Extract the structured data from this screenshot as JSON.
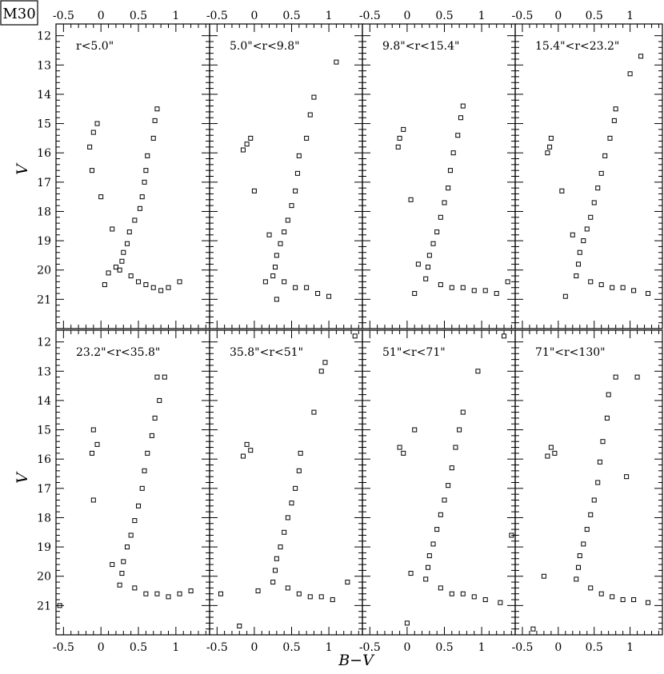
{
  "cluster_label": "M30",
  "chart_data": [
    {
      "type": "scatter",
      "panel_label": "r<5.0\"",
      "xlabel": "B−V",
      "ylabel": "V",
      "xlim": [
        -0.6,
        1.45
      ],
      "ylim": [
        22,
        11.6
      ],
      "x_ticks": [
        "-0.5",
        "0",
        "0.5",
        "1"
      ],
      "y_ticks": [
        "12",
        "13",
        "14",
        "15",
        "16",
        "17",
        "18",
        "19",
        "20",
        "21"
      ],
      "x": [
        0.75,
        0.72,
        0.7,
        0.62,
        0.6,
        0.58,
        0.55,
        0.52,
        0.45,
        0.38,
        0.35,
        0.3,
        0.28,
        0.25,
        0.4,
        0.5,
        0.6,
        0.7,
        0.8,
        0.9,
        0.2,
        0.1,
        0.05,
        -0.05,
        -0.1,
        -0.15,
        -0.12,
        0.0,
        0.15,
        1.05
      ],
      "y": [
        14.5,
        14.9,
        15.5,
        16.1,
        16.6,
        17.0,
        17.5,
        17.9,
        18.3,
        18.7,
        19.1,
        19.4,
        19.7,
        20.0,
        20.2,
        20.4,
        20.5,
        20.6,
        20.7,
        20.6,
        19.9,
        20.1,
        20.5,
        15.0,
        15.3,
        15.8,
        16.6,
        17.5,
        18.6,
        20.4
      ]
    },
    {
      "type": "scatter",
      "panel_label": "5.0\"<r<9.8\"",
      "xlabel": "B−V",
      "ylabel": "V",
      "xlim": [
        -0.6,
        1.45
      ],
      "ylim": [
        22,
        11.6
      ],
      "x_ticks": [
        "-0.5",
        "0",
        "0.5",
        "1"
      ],
      "y_ticks": [
        "12",
        "13",
        "14",
        "15",
        "16",
        "17",
        "18",
        "19",
        "20",
        "21"
      ],
      "x": [
        1.1,
        0.8,
        0.75,
        0.7,
        0.6,
        0.58,
        0.55,
        0.5,
        0.45,
        0.4,
        0.35,
        0.3,
        0.28,
        0.25,
        0.4,
        0.55,
        0.7,
        0.85,
        1.0,
        -0.05,
        -0.1,
        -0.15,
        0.0,
        0.2,
        0.15,
        0.3
      ],
      "y": [
        12.9,
        14.1,
        14.7,
        15.5,
        16.1,
        16.7,
        17.3,
        17.8,
        18.3,
        18.7,
        19.1,
        19.5,
        19.9,
        20.2,
        20.4,
        20.6,
        20.6,
        20.8,
        20.9,
        15.5,
        15.7,
        15.9,
        17.3,
        18.8,
        20.4,
        21.0
      ]
    },
    {
      "type": "scatter",
      "panel_label": "9.8\"<r<15.4\"",
      "xlabel": "B−V",
      "ylabel": "V",
      "xlim": [
        -0.6,
        1.45
      ],
      "ylim": [
        22,
        11.6
      ],
      "x_ticks": [
        "-0.5",
        "0",
        "0.5",
        "1"
      ],
      "y_ticks": [
        "12",
        "13",
        "14",
        "15",
        "16",
        "17",
        "18",
        "19",
        "20",
        "21"
      ],
      "x": [
        0.75,
        0.72,
        0.68,
        0.62,
        0.58,
        0.55,
        0.5,
        0.45,
        0.4,
        0.35,
        0.3,
        0.28,
        0.25,
        0.45,
        0.6,
        0.75,
        0.9,
        1.05,
        1.2,
        -0.05,
        -0.1,
        -0.12,
        0.05,
        0.15,
        0.1,
        1.35
      ],
      "y": [
        14.4,
        14.8,
        15.4,
        16.0,
        16.6,
        17.2,
        17.7,
        18.2,
        18.7,
        19.1,
        19.5,
        19.9,
        20.3,
        20.5,
        20.6,
        20.6,
        20.7,
        20.7,
        20.8,
        15.2,
        15.5,
        15.8,
        17.6,
        19.8,
        20.8,
        20.4
      ]
    },
    {
      "type": "scatter",
      "panel_label": "15.4\"<r<23.2\"",
      "xlabel": "B−V",
      "ylabel": "V",
      "xlim": [
        -0.6,
        1.45
      ],
      "ylim": [
        22,
        11.6
      ],
      "x_ticks": [
        "-0.5",
        "0",
        "0.5",
        "1"
      ],
      "y_ticks": [
        "12",
        "13",
        "14",
        "15",
        "16",
        "17",
        "18",
        "19",
        "20",
        "21"
      ],
      "x": [
        1.15,
        1.0,
        0.8,
        0.78,
        0.72,
        0.65,
        0.6,
        0.55,
        0.5,
        0.45,
        0.4,
        0.35,
        0.3,
        0.28,
        0.25,
        0.45,
        0.6,
        0.75,
        0.9,
        1.05,
        1.25,
        -0.1,
        -0.12,
        -0.15,
        0.05,
        0.2,
        0.1
      ],
      "y": [
        12.7,
        13.3,
        14.5,
        14.9,
        15.5,
        16.1,
        16.7,
        17.2,
        17.7,
        18.2,
        18.6,
        19.0,
        19.4,
        19.8,
        20.2,
        20.4,
        20.5,
        20.6,
        20.6,
        20.7,
        20.8,
        15.5,
        15.8,
        16.0,
        17.3,
        18.8,
        20.9
      ]
    },
    {
      "type": "scatter",
      "panel_label": "23.2\"<r<35.8\"",
      "xlabel": "B−V",
      "ylabel": "V",
      "xlim": [
        -0.6,
        1.45
      ],
      "ylim": [
        22,
        11.6
      ],
      "x_ticks": [
        "-0.5",
        "0",
        "0.5",
        "1"
      ],
      "y_ticks": [
        "12",
        "13",
        "14",
        "15",
        "16",
        "17",
        "18",
        "19",
        "20",
        "21"
      ],
      "x": [
        0.85,
        0.75,
        0.78,
        0.72,
        0.68,
        0.62,
        0.58,
        0.55,
        0.5,
        0.45,
        0.4,
        0.35,
        0.3,
        0.28,
        0.25,
        0.45,
        0.6,
        0.75,
        0.9,
        1.05,
        1.2,
        -0.1,
        -0.05,
        -0.12,
        -0.1,
        0.15,
        -0.55
      ],
      "y": [
        13.2,
        13.2,
        14.0,
        14.6,
        15.2,
        15.8,
        16.4,
        17.0,
        17.6,
        18.1,
        18.6,
        19.0,
        19.5,
        19.9,
        20.3,
        20.4,
        20.6,
        20.6,
        20.7,
        20.6,
        20.5,
        15.0,
        15.5,
        15.8,
        17.4,
        19.6,
        21.0
      ]
    },
    {
      "type": "scatter",
      "panel_label": "35.8\"<r<51\"",
      "xlabel": "B−V",
      "ylabel": "V",
      "xlim": [
        -0.6,
        1.45
      ],
      "ylim": [
        22,
        11.6
      ],
      "x_ticks": [
        "-0.5",
        "0",
        "0.5",
        "1"
      ],
      "y_ticks": [
        "12",
        "13",
        "14",
        "15",
        "16",
        "17",
        "18",
        "19",
        "20",
        "21"
      ],
      "x": [
        1.35,
        0.95,
        0.9,
        0.8,
        0.62,
        0.6,
        0.55,
        0.5,
        0.45,
        0.4,
        0.35,
        0.3,
        0.28,
        0.25,
        0.45,
        0.6,
        0.75,
        0.9,
        1.05,
        1.25,
        -0.1,
        -0.05,
        -0.15,
        0.05,
        -0.2,
        -0.45
      ],
      "y": [
        11.8,
        12.7,
        13.0,
        14.4,
        15.8,
        16.4,
        17.0,
        17.5,
        18.0,
        18.5,
        19.0,
        19.4,
        19.8,
        20.2,
        20.4,
        20.6,
        20.7,
        20.7,
        20.8,
        20.2,
        15.5,
        15.7,
        15.9,
        20.5,
        21.7,
        20.6
      ]
    },
    {
      "type": "scatter",
      "panel_label": "51\"<r<71\"",
      "xlabel": "B−V",
      "ylabel": "V",
      "xlim": [
        -0.6,
        1.45
      ],
      "ylim": [
        22,
        11.6
      ],
      "x_ticks": [
        "-0.5",
        "0",
        "0.5",
        "1"
      ],
      "y_ticks": [
        "12",
        "13",
        "14",
        "15",
        "16",
        "17",
        "18",
        "19",
        "20",
        "21"
      ],
      "x": [
        1.3,
        0.95,
        0.75,
        0.7,
        0.65,
        0.6,
        0.55,
        0.5,
        0.45,
        0.4,
        0.35,
        0.3,
        0.28,
        0.25,
        0.45,
        0.6,
        0.75,
        0.9,
        1.05,
        1.25,
        -0.1,
        -0.05,
        0.1,
        0.05,
        0.0,
        1.4
      ],
      "y": [
        11.8,
        13.0,
        14.4,
        15.0,
        15.6,
        16.3,
        16.9,
        17.4,
        17.9,
        18.4,
        18.9,
        19.3,
        19.7,
        20.1,
        20.4,
        20.6,
        20.6,
        20.7,
        20.8,
        20.9,
        15.6,
        15.8,
        15.0,
        19.9,
        21.6,
        18.6
      ]
    },
    {
      "type": "scatter",
      "panel_label": "71\"<r<130\"",
      "xlabel": "B−V",
      "ylabel": "V",
      "xlim": [
        -0.6,
        1.45
      ],
      "ylim": [
        22,
        11.6
      ],
      "x_ticks": [
        "-0.5",
        "0",
        "0.5",
        "1"
      ],
      "y_ticks": [
        "12",
        "13",
        "14",
        "15",
        "16",
        "17",
        "18",
        "19",
        "20",
        "21"
      ],
      "x": [
        1.1,
        0.8,
        0.7,
        0.68,
        0.62,
        0.58,
        0.55,
        0.5,
        0.45,
        0.4,
        0.35,
        0.3,
        0.28,
        0.25,
        0.45,
        0.6,
        0.75,
        0.9,
        1.05,
        1.25,
        -0.1,
        -0.05,
        -0.15,
        0.95,
        -0.2,
        -0.35
      ],
      "y": [
        13.2,
        13.2,
        13.8,
        14.6,
        15.4,
        16.1,
        16.8,
        17.4,
        17.9,
        18.4,
        18.9,
        19.3,
        19.7,
        20.1,
        20.4,
        20.6,
        20.7,
        20.8,
        20.8,
        20.9,
        15.6,
        15.8,
        15.9,
        16.6,
        20.0,
        21.8
      ]
    }
  ]
}
